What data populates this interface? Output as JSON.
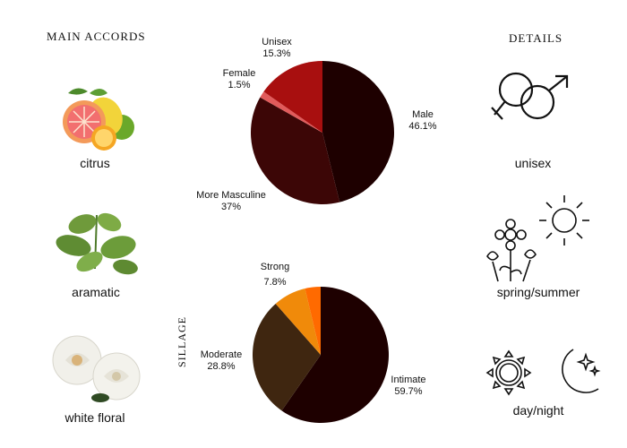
{
  "headings": {
    "main_accords": "MAIN ACCORDS",
    "details": "DETAILS",
    "sillage": "SILLAGE"
  },
  "accords": [
    {
      "label": "citrus",
      "icon": "citrus-fruits-image"
    },
    {
      "label": "aramatic",
      "icon": "mint-leaves-image"
    },
    {
      "label": "white floral",
      "icon": "white-roses-image"
    }
  ],
  "details": [
    {
      "label": "unisex",
      "icon": "gender-symbols-icon"
    },
    {
      "label": "spring/summer",
      "icon": "sun-and-flowers-icon"
    },
    {
      "label": "day/night",
      "icon": "sun-and-moon-icon"
    }
  ],
  "chart_data": [
    {
      "type": "pie",
      "slices": [
        {
          "label": "Male",
          "value_label": "46.1%",
          "value": 46.1,
          "color": "#1e0000"
        },
        {
          "label": "More Masculine",
          "value_label": "37%",
          "value": 37.0,
          "color": "#3c0606"
        },
        {
          "label": "Female",
          "value_label": "1.5%",
          "value": 1.5,
          "color": "#e15b5b"
        },
        {
          "label": "Unisex",
          "value_label": "15.3%",
          "value": 15.3,
          "color": "#a80f0f"
        }
      ]
    },
    {
      "type": "pie",
      "slices": [
        {
          "label": "Intimate",
          "value_label": "59.7%",
          "value": 59.7,
          "color": "#1e0000"
        },
        {
          "label": "Moderate",
          "value_label": "28.8%",
          "value": 28.8,
          "color": "#3f2610"
        },
        {
          "label": "Strong",
          "value_label": "7.8%",
          "value": 7.8,
          "color": "#f08a0a"
        },
        {
          "label": "",
          "value_label": "",
          "value": 3.7,
          "color": "#ff6a00"
        }
      ]
    }
  ]
}
